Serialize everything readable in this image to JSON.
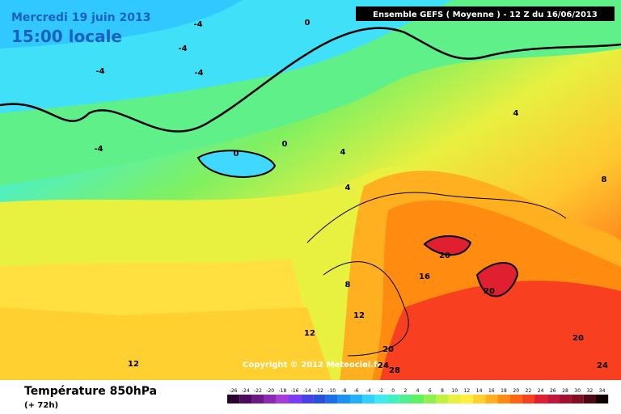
{
  "header": {
    "date": "Mercredi 19 juin 2013",
    "time": "15:00 locale",
    "model": "Ensemble GEFS ( Moyenne )  -  12 Z du 16/06/2013"
  },
  "copyright": "Copyright © 2012 Meteociel.fr",
  "footer": {
    "title": "Température 850hPa",
    "lead": "(+ 72h)"
  },
  "contour_labels": [
    0,
    -4,
    -4,
    -4,
    -4,
    0,
    0,
    -4,
    4,
    4,
    8,
    4,
    20,
    16,
    20,
    8,
    12,
    12,
    12,
    20,
    20,
    24,
    28,
    24
  ],
  "scale": {
    "ticks": [
      -26,
      -24,
      -22,
      -20,
      -18,
      -16,
      -14,
      -12,
      -10,
      -8,
      -6,
      -4,
      -2,
      0,
      2,
      4,
      6,
      8,
      10,
      12,
      14,
      16,
      18,
      20,
      22,
      24,
      26,
      28,
      30,
      32,
      34
    ],
    "colors": [
      "#2a0030",
      "#4b0a5a",
      "#6a1a86",
      "#8a2ab0",
      "#a83cd6",
      "#7a3cf0",
      "#4a40e8",
      "#2850d8",
      "#1c6ee8",
      "#1e90f0",
      "#20b0f8",
      "#30d0ff",
      "#40e8f0",
      "#40f0c0",
      "#50f090",
      "#60f060",
      "#90f050",
      "#c0f040",
      "#e8f040",
      "#fff040",
      "#ffd030",
      "#ffb020",
      "#ff8c10",
      "#ff6410",
      "#f84020",
      "#e02030",
      "#c01838",
      "#a01030",
      "#801020",
      "#500810",
      "#100000"
    ]
  }
}
